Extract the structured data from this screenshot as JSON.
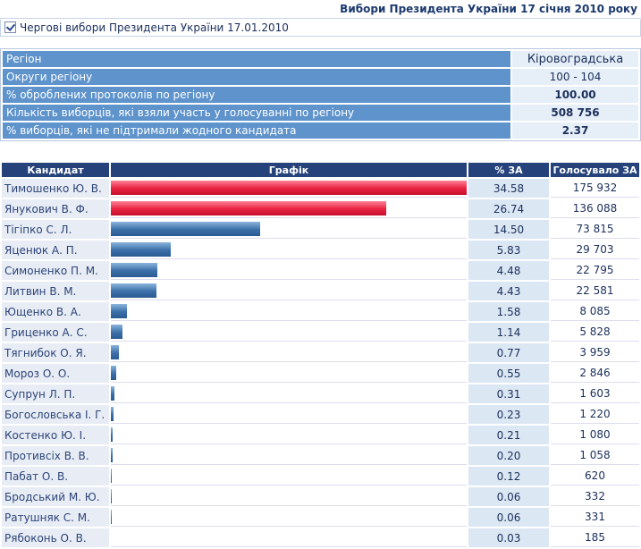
{
  "header": {
    "title": "Вибори Президента України 17 січня 2010 року",
    "election": "Чергові вибори Президента України 17.01.2010"
  },
  "summary": {
    "rows": [
      [
        "Регіон",
        "Кіровоградська"
      ],
      [
        "Округи регіону",
        "100 - 104"
      ],
      [
        "% оброблених протоколів по регіону",
        "100.00"
      ],
      [
        "Кількість виборців, які взяли участь у голосуванні по регіону",
        "508 756"
      ],
      [
        "% виборців, які не підтримали жодного кандидата",
        "2.37"
      ]
    ]
  },
  "candidates": {
    "columns": [
      "Кандидат",
      "Графік",
      "% ЗА",
      "Голосувало ЗА"
    ],
    "rows": [
      {
        "name": "Тимошенко Ю. В.",
        "pct": "34.58",
        "votes": "175 932"
      },
      {
        "name": "Янукович В. Ф.",
        "pct": "26.74",
        "votes": "136 088"
      },
      {
        "name": "Тігіпко С. Л.",
        "pct": "14.50",
        "votes": "73 815"
      },
      {
        "name": "Яценюк А. П.",
        "pct": "5.83",
        "votes": "29 703"
      },
      {
        "name": "Симоненко П. М.",
        "pct": "4.48",
        "votes": "22 795"
      },
      {
        "name": "Литвин В. М.",
        "pct": "4.43",
        "votes": "22 581"
      },
      {
        "name": "Ющенко В. А.",
        "pct": "1.58",
        "votes": "8 085"
      },
      {
        "name": "Гриценко А. С.",
        "pct": "1.14",
        "votes": "5 828"
      },
      {
        "name": "Тягнибок О. Я.",
        "pct": "0.77",
        "votes": "3 959"
      },
      {
        "name": "Мороз О. О.",
        "pct": "0.55",
        "votes": "2 846"
      },
      {
        "name": "Супрун Л. П.",
        "pct": "0.31",
        "votes": "1 603"
      },
      {
        "name": "Богословська І. Г.",
        "pct": "0.23",
        "votes": "1 220"
      },
      {
        "name": "Костенко Ю. І.",
        "pct": "0.21",
        "votes": "1 080"
      },
      {
        "name": "Противсіх В. В.",
        "pct": "0.20",
        "votes": "1 058"
      },
      {
        "name": "Пабат О. В.",
        "pct": "0.12",
        "votes": "620"
      },
      {
        "name": "Бродський М. Ю.",
        "pct": "0.06",
        "votes": "332"
      },
      {
        "name": "Ратушняк С. М.",
        "pct": "0.06",
        "votes": "331"
      },
      {
        "name": "Рябоконь О. В.",
        "pct": "0.03",
        "votes": "185"
      }
    ]
  }
}
